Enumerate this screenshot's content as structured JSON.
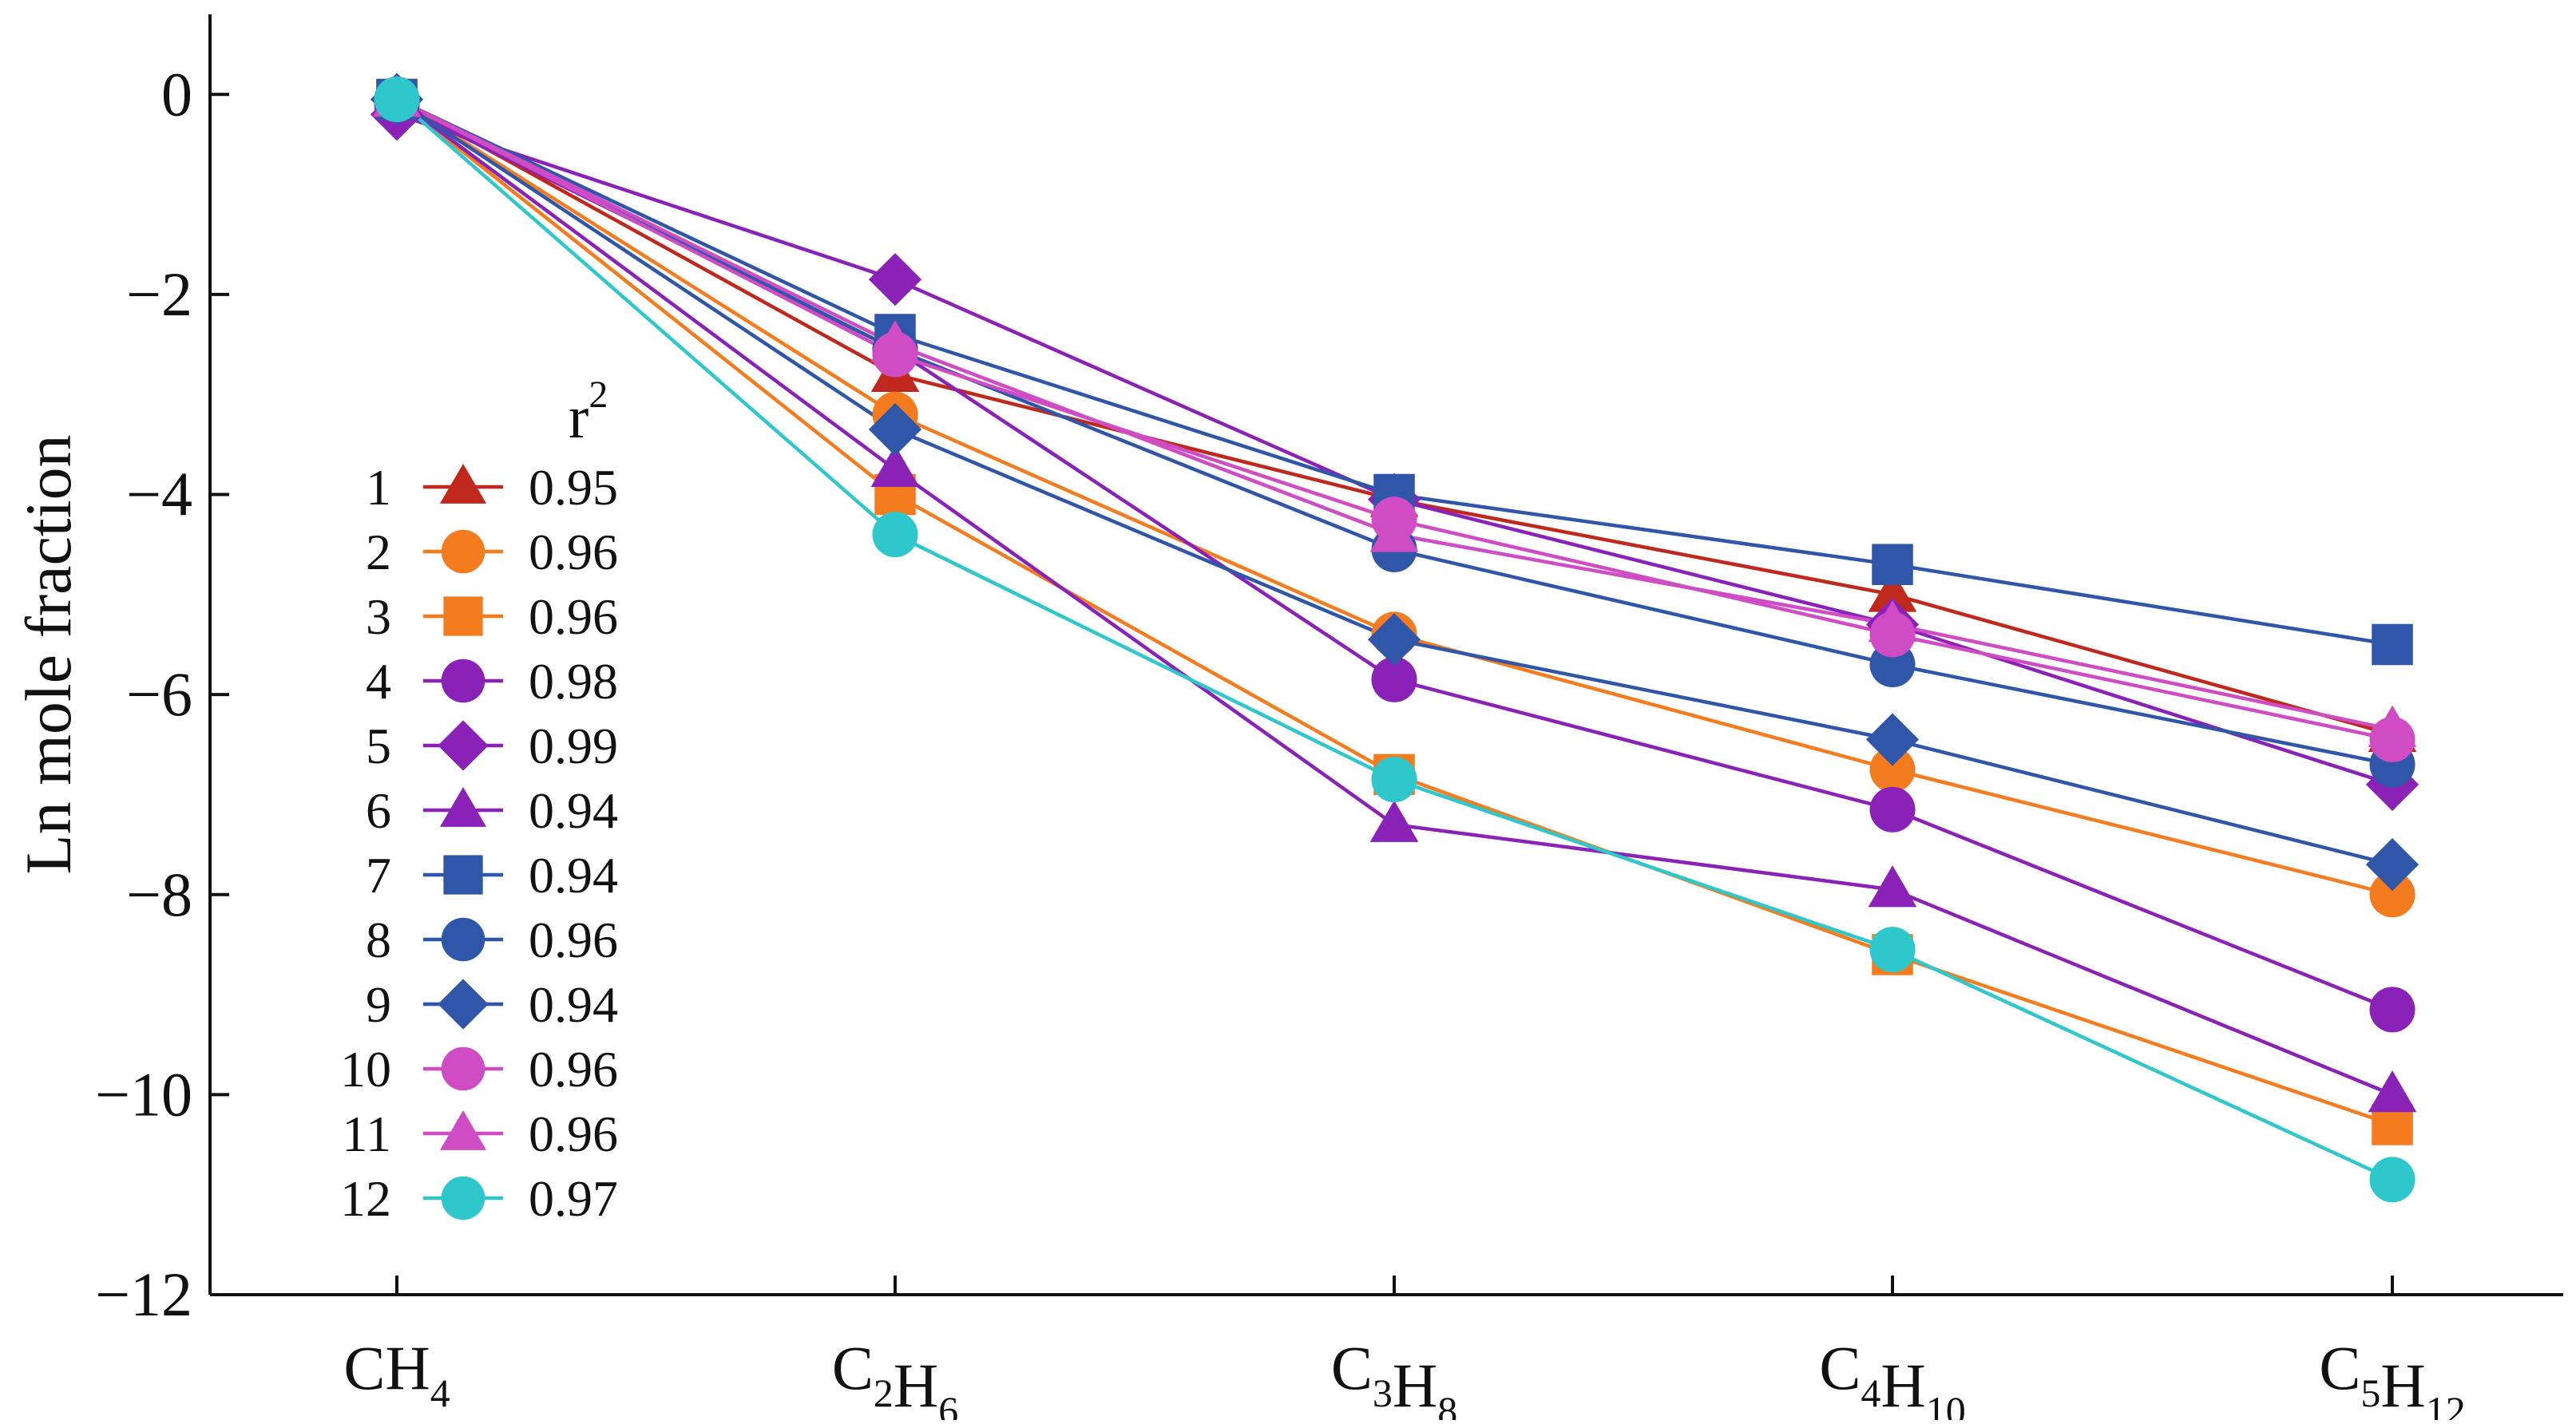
{
  "chart_data": {
    "type": "line",
    "title": "",
    "ylabel": "Ln mole fraction",
    "xlabel": "",
    "ylim": [
      -12,
      0.8
    ],
    "yticks": [
      0,
      -2,
      -4,
      -6,
      -8,
      -10,
      -12
    ],
    "ytick_labels": [
      "0",
      "−2",
      "−4",
      "−6",
      "−8",
      "−10",
      "−12"
    ],
    "categories": [
      "CH4",
      "C2H6",
      "C3H8",
      "C4H10",
      "C5H12"
    ],
    "category_parts": [
      [
        [
          "C",
          ""
        ],
        [
          "H",
          "4"
        ]
      ],
      [
        [
          "C",
          "2"
        ],
        [
          "H",
          "6"
        ]
      ],
      [
        [
          "C",
          "3"
        ],
        [
          "H",
          "8"
        ]
      ],
      [
        [
          "C",
          "4"
        ],
        [
          "H",
          "10"
        ]
      ],
      [
        [
          "C",
          "5"
        ],
        [
          "H",
          "12"
        ]
      ]
    ],
    "legend": {
      "title": "r",
      "title_superscript": "2",
      "position": "left-center"
    },
    "series": [
      {
        "name": "1",
        "r2": "0.95",
        "color": "#c0281c",
        "marker": "triangle",
        "values": [
          -0.05,
          -2.8,
          -4.05,
          -5.0,
          -6.4
        ]
      },
      {
        "name": "2",
        "r2": "0.96",
        "color": "#f47c1e",
        "marker": "circle",
        "values": [
          -0.05,
          -3.2,
          -5.4,
          -6.75,
          -8.0
        ]
      },
      {
        "name": "3",
        "r2": "0.96",
        "color": "#f47c1e",
        "marker": "square",
        "values": [
          -0.05,
          -4.0,
          -6.8,
          -8.6,
          -10.3
        ]
      },
      {
        "name": "4",
        "r2": "0.98",
        "color": "#8a22b8",
        "marker": "circle",
        "values": [
          -0.1,
          -2.55,
          -5.85,
          -7.15,
          -9.15
        ]
      },
      {
        "name": "5",
        "r2": "0.99",
        "color": "#8a22b8",
        "marker": "diamond",
        "values": [
          -0.2,
          -1.85,
          -4.05,
          -5.3,
          -6.9
        ]
      },
      {
        "name": "6",
        "r2": "0.94",
        "color": "#8a22b8",
        "marker": "triangle",
        "values": [
          -0.05,
          -3.75,
          -7.3,
          -7.95,
          -10.0
        ]
      },
      {
        "name": "7",
        "r2": "0.94",
        "color": "#2f56a8",
        "marker": "square",
        "values": [
          -0.05,
          -2.4,
          -4.0,
          -4.7,
          -5.5
        ]
      },
      {
        "name": "8",
        "r2": "0.96",
        "color": "#2f56a8",
        "marker": "circle",
        "values": [
          -0.05,
          -2.55,
          -4.55,
          -5.7,
          -6.7
        ]
      },
      {
        "name": "9",
        "r2": "0.94",
        "color": "#2f56a8",
        "marker": "diamond",
        "values": [
          -0.05,
          -3.35,
          -5.45,
          -6.45,
          -7.7
        ]
      },
      {
        "name": "10",
        "r2": "0.96",
        "color": "#cf4cc4",
        "marker": "circle",
        "values": [
          -0.05,
          -2.6,
          -4.25,
          -5.4,
          -6.45
        ]
      },
      {
        "name": "11",
        "r2": "0.96",
        "color": "#cf4cc4",
        "marker": "triangle",
        "values": [
          -0.05,
          -2.5,
          -4.4,
          -5.3,
          -6.35
        ]
      },
      {
        "name": "12",
        "r2": "0.97",
        "color": "#2ec8cc",
        "marker": "circle",
        "values": [
          -0.05,
          -4.4,
          -6.85,
          -8.55,
          -10.85
        ]
      }
    ]
  }
}
